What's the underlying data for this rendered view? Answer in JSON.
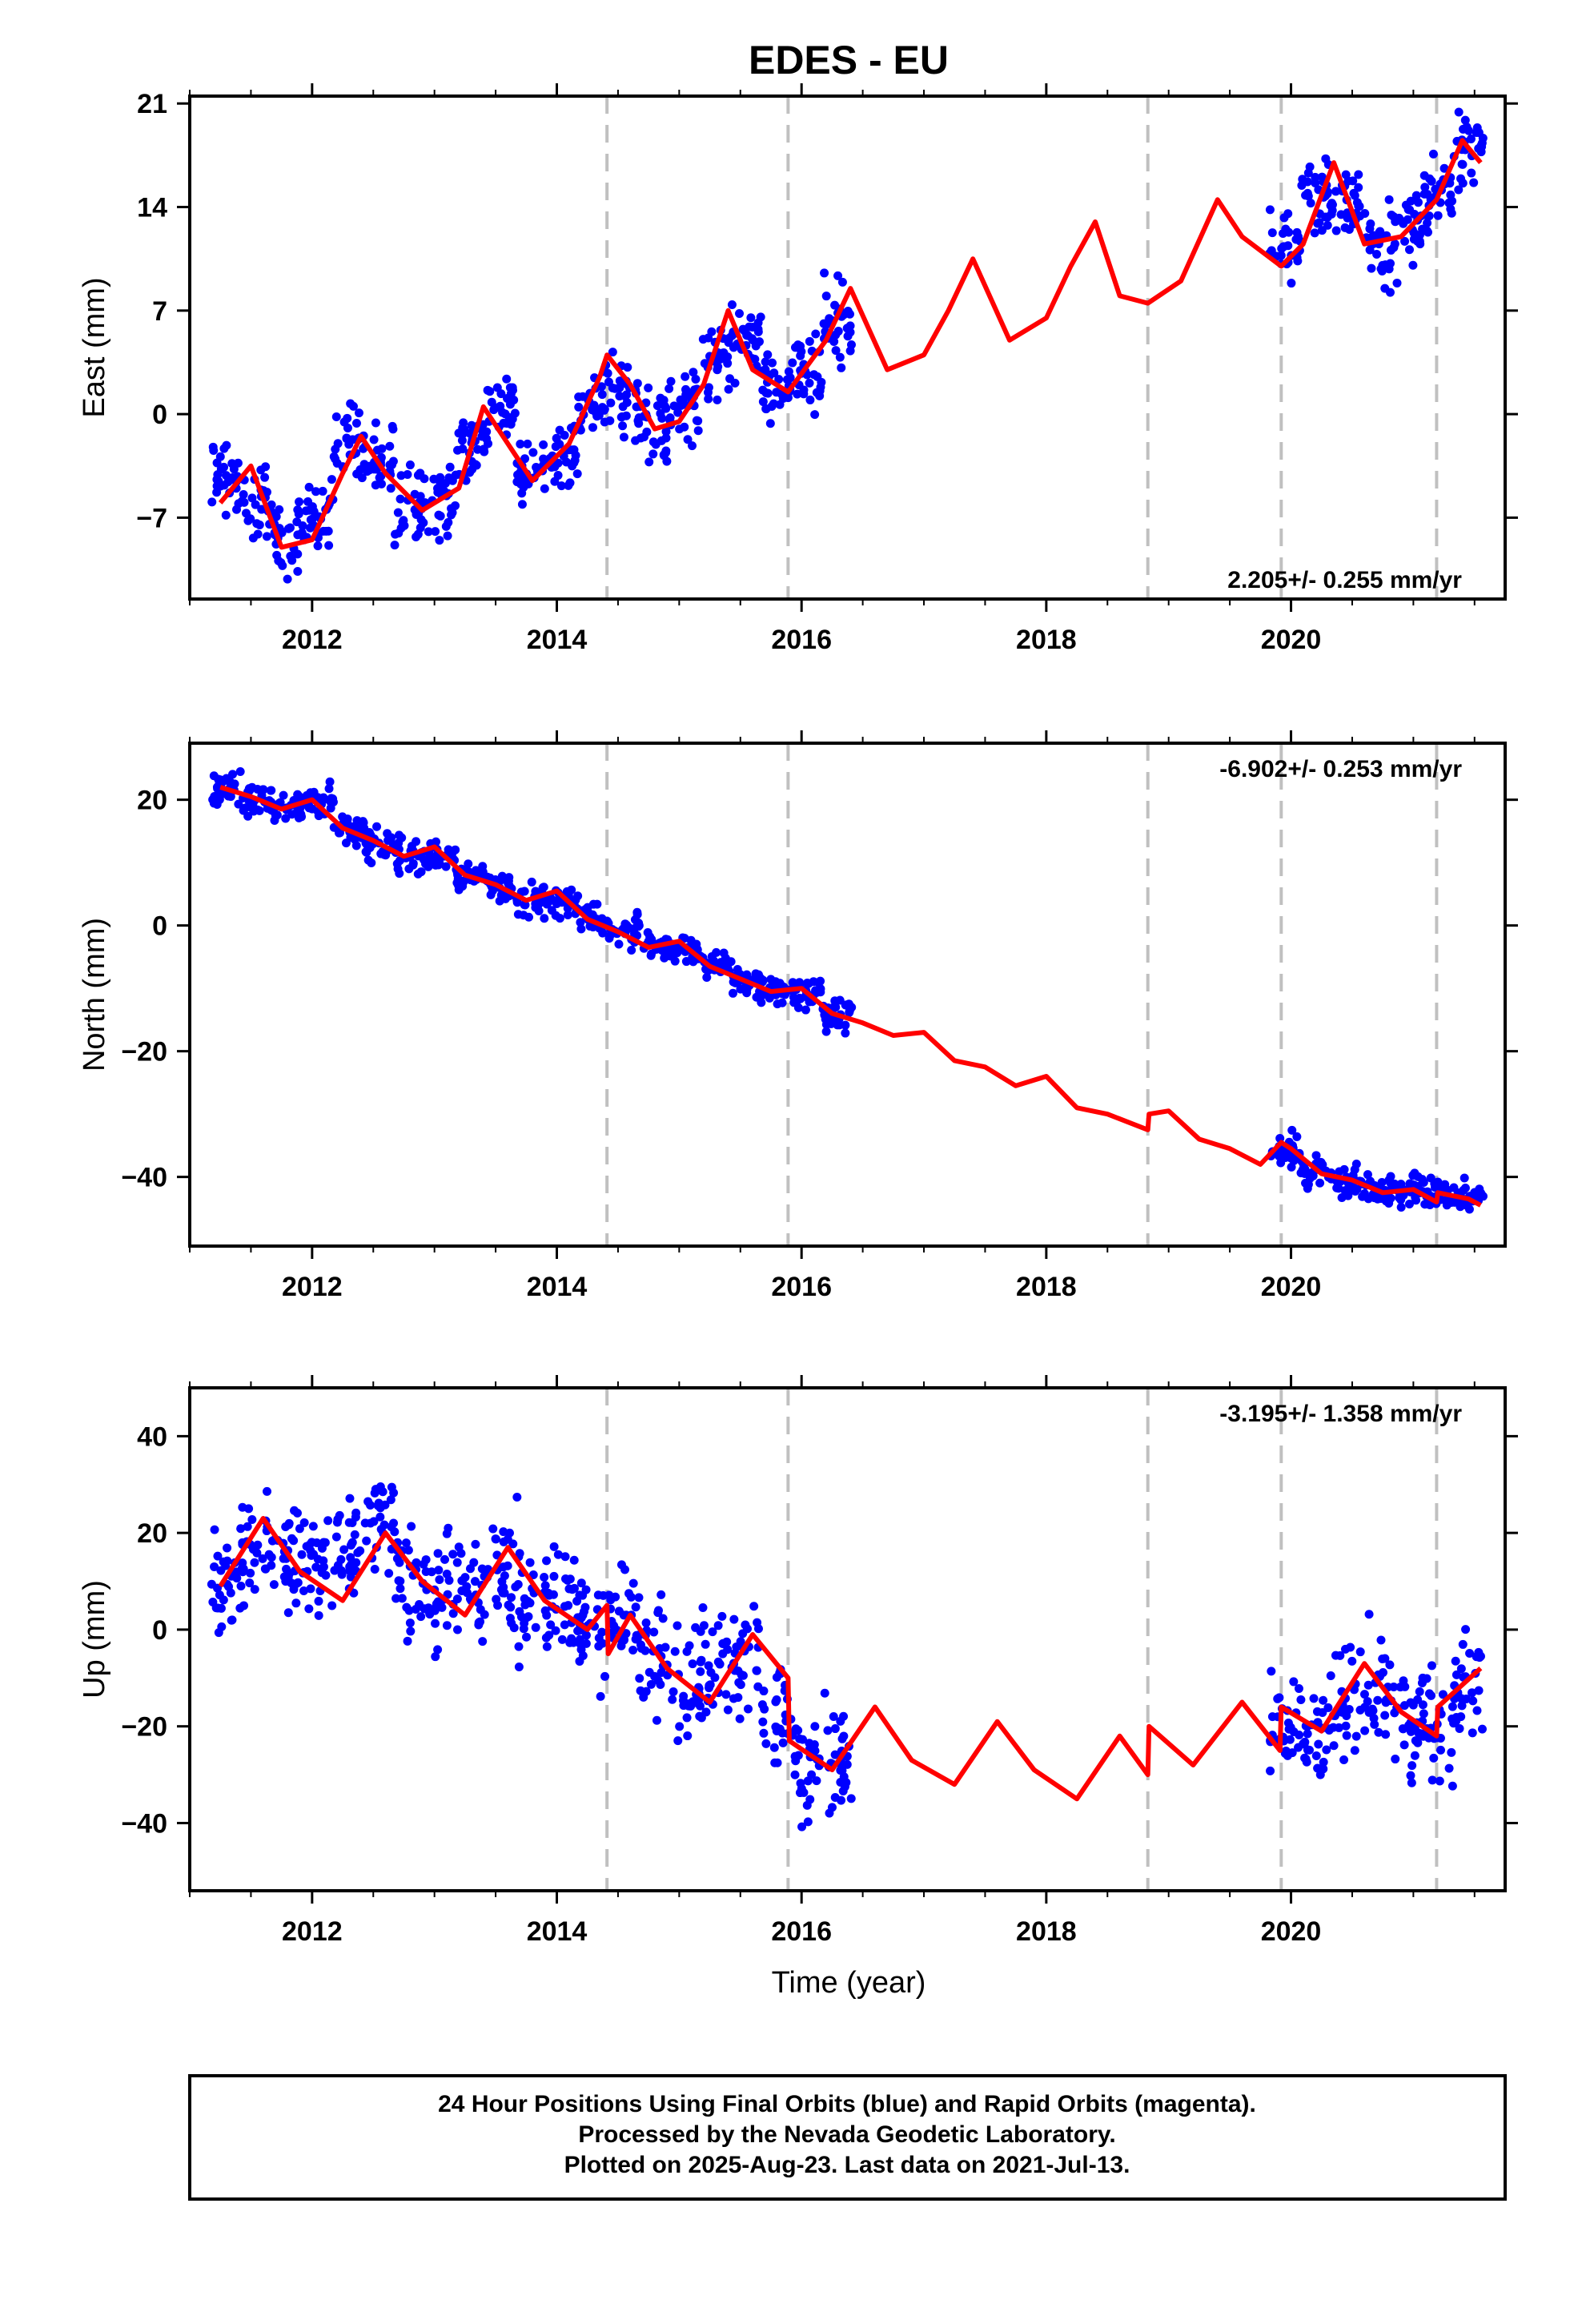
{
  "title": "EDES - EU",
  "colors": {
    "points": "#0000ff",
    "model": "#ff0000",
    "breaks": "#c0c0c0",
    "frame": "#000000"
  },
  "chart_data": [
    {
      "type": "scatter",
      "component": "east",
      "ylabel": "East (mm)",
      "xticks": [
        "2012",
        "2014",
        "2016",
        "2018",
        "2020"
      ],
      "yticks": [
        "−7",
        "0",
        "7",
        "14",
        "21"
      ],
      "xlim": [
        2011.0,
        2021.75
      ],
      "ylim": [
        -12.5,
        21.5
      ],
      "grid": false,
      "rate_label": "2.205+/- 0.255 mm/yr",
      "rate_position": "bottom-right",
      "breaks": [
        2014.41,
        2015.89,
        2018.83,
        2019.92,
        2021.19
      ],
      "model": {
        "x": [
          2011.25,
          2011.5,
          2011.75,
          2012.0,
          2012.25,
          2012.4,
          2012.6,
          2012.9,
          2013.2,
          2013.4,
          2013.6,
          2013.8,
          2014.1,
          2014.35,
          2014.41,
          2014.6,
          2014.8,
          2015.0,
          2015.2,
          2015.4,
          2015.6,
          2015.89,
          2016.2,
          2016.4,
          2016.7,
          2017.0,
          2017.2,
          2017.4,
          2017.7,
          2018.0,
          2018.2,
          2018.4,
          2018.6,
          2018.83,
          2019.1,
          2019.4,
          2019.6,
          2019.92,
          2020.1,
          2020.35,
          2020.6,
          2020.9,
          2021.19,
          2021.4,
          2021.55
        ],
        "y": [
          -6,
          -3.5,
          -9,
          -8.5,
          -4,
          -1.5,
          -4,
          -6.5,
          -5,
          0.5,
          -2,
          -4.5,
          -2,
          2.5,
          4,
          2,
          -1,
          -0.5,
          2,
          7,
          3,
          1.5,
          5,
          8.5,
          3,
          4,
          7,
          10.5,
          5,
          6.5,
          10,
          13,
          8,
          7.5,
          9,
          14.5,
          12,
          10,
          11.5,
          17,
          11.5,
          12,
          14.5,
          18.5,
          17
        ]
      },
      "points_x": [
        2011.3,
        2011.55,
        2011.8,
        2012.05,
        2012.3,
        2012.55,
        2012.8,
        2013.05,
        2013.3,
        2013.55,
        2013.8,
        2014.05,
        2014.3,
        2014.55,
        2014.8,
        2015.05,
        2015.3,
        2015.55,
        2015.8,
        2016.05,
        2016.3,
        2019.95,
        2020.2,
        2020.45,
        2020.7,
        2020.95,
        2021.2,
        2021.45
      ],
      "points_y": [
        -4,
        -6,
        -8.5,
        -7,
        -2,
        -3,
        -6,
        -6,
        -2,
        0,
        -4,
        -3,
        1,
        1,
        -1,
        1,
        4,
        5,
        2,
        3,
        6,
        11,
        15,
        14,
        11,
        12,
        15,
        18
      ]
    },
    {
      "type": "scatter",
      "component": "north",
      "ylabel": "North (mm)",
      "xticks": [
        "2012",
        "2014",
        "2016",
        "2018",
        "2020"
      ],
      "yticks": [
        "−40",
        "−20",
        "0",
        "20"
      ],
      "xlim": [
        2011.0,
        2021.75
      ],
      "ylim": [
        -51,
        29
      ],
      "grid": false,
      "rate_label": "-6.902+/- 0.253 mm/yr",
      "rate_position": "top-right",
      "breaks": [
        2014.41,
        2015.89,
        2018.83,
        2019.92,
        2021.19
      ],
      "model": {
        "x": [
          2011.25,
          2011.5,
          2011.75,
          2012.0,
          2012.25,
          2012.5,
          2012.75,
          2013.0,
          2013.25,
          2013.5,
          2013.75,
          2014.0,
          2014.25,
          2014.5,
          2014.75,
          2015.0,
          2015.25,
          2015.5,
          2015.75,
          2016.0,
          2016.25,
          2016.5,
          2016.75,
          2017.0,
          2017.25,
          2017.5,
          2017.75,
          2018.0,
          2018.25,
          2018.5,
          2018.83,
          2018.84,
          2019.0,
          2019.25,
          2019.5,
          2019.75,
          2019.92,
          2020.0,
          2020.25,
          2020.5,
          2020.75,
          2021.0,
          2021.19,
          2021.2,
          2021.45,
          2021.55
        ],
        "y": [
          22,
          20.5,
          18.5,
          20,
          15.5,
          13.5,
          11,
          12.5,
          8,
          6.5,
          4,
          5.5,
          1,
          -1,
          -3.5,
          -2.5,
          -6.5,
          -8.5,
          -10.5,
          -10,
          -14,
          -15.5,
          -17.5,
          -17,
          -21.5,
          -22.5,
          -25.5,
          -24,
          -29,
          -30,
          -32.5,
          -30,
          -29.5,
          -34,
          -35.5,
          -38,
          -34.5,
          -35.5,
          -39.5,
          -40.5,
          -42.5,
          -42,
          -44,
          -42.5,
          -43.5,
          -44.5
        ]
      },
      "points_x": [
        2011.3,
        2011.55,
        2011.8,
        2012.05,
        2012.3,
        2012.55,
        2012.8,
        2013.05,
        2013.3,
        2013.55,
        2013.8,
        2014.05,
        2014.3,
        2014.55,
        2014.8,
        2015.05,
        2015.3,
        2015.55,
        2015.8,
        2016.05,
        2016.3,
        2019.95,
        2020.2,
        2020.45,
        2020.7,
        2020.95,
        2021.2,
        2021.45
      ],
      "points_y": [
        22,
        20,
        19,
        20,
        15,
        13,
        11,
        11,
        8,
        6,
        4,
        4,
        1,
        -1,
        -3,
        -4,
        -6,
        -9,
        -10,
        -11,
        -14,
        -36,
        -39,
        -41,
        -42,
        -42,
        -43,
        -43
      ]
    },
    {
      "type": "scatter",
      "component": "up",
      "ylabel": "Up (mm)",
      "xlabel": "Time (year)",
      "xticks": [
        "2012",
        "2014",
        "2016",
        "2018",
        "2020"
      ],
      "yticks": [
        "−40",
        "−20",
        "0",
        "20",
        "40"
      ],
      "xlim": [
        2011.0,
        2021.75
      ],
      "ylim": [
        -54,
        50
      ],
      "grid": false,
      "rate_label": "-3.195+/- 1.358 mm/yr",
      "rate_position": "top-right",
      "breaks": [
        2014.41,
        2015.89,
        2018.83,
        2019.92,
        2021.19
      ],
      "model": {
        "x": [
          2011.25,
          2011.6,
          2011.9,
          2012.25,
          2012.6,
          2012.9,
          2013.25,
          2013.6,
          2013.9,
          2014.25,
          2014.41,
          2014.42,
          2014.6,
          2014.9,
          2015.25,
          2015.6,
          2015.89,
          2015.9,
          2016.25,
          2016.6,
          2016.9,
          2017.25,
          2017.6,
          2017.9,
          2018.25,
          2018.6,
          2018.83,
          2018.84,
          2019.2,
          2019.6,
          2019.91,
          2019.92,
          2020.25,
          2020.6,
          2020.9,
          2021.19,
          2021.2,
          2021.55
        ],
        "y": [
          9,
          23,
          12,
          6,
          20,
          10,
          3,
          17,
          6,
          0,
          5,
          -5,
          3,
          -8,
          -15,
          -1,
          -10,
          -23,
          -29,
          -16,
          -27,
          -32,
          -19,
          -29,
          -35,
          -22,
          -30,
          -20,
          -28,
          -15,
          -25,
          -16,
          -21,
          -7,
          -17,
          -22,
          -16,
          -8
        ]
      },
      "points_x": [
        2011.3,
        2011.55,
        2011.8,
        2012.05,
        2012.3,
        2012.55,
        2012.8,
        2013.05,
        2013.3,
        2013.55,
        2013.8,
        2014.05,
        2014.3,
        2014.55,
        2014.8,
        2015.05,
        2015.3,
        2015.55,
        2015.8,
        2016.05,
        2016.3,
        2019.95,
        2020.2,
        2020.45,
        2020.7,
        2020.95,
        2021.2,
        2021.45
      ],
      "points_y": [
        10,
        18,
        15,
        12,
        16,
        22,
        10,
        8,
        6,
        12,
        7,
        4,
        0,
        2,
        -5,
        -12,
        -8,
        -5,
        -18,
        -28,
        -26,
        -20,
        -22,
        -15,
        -12,
        -18,
        -20,
        -12
      ]
    }
  ],
  "footer": {
    "line1": "24 Hour Positions Using Final Orbits (blue) and Rapid Orbits (magenta).",
    "line2": "Processed by the Nevada Geodetic Laboratory.",
    "line3": "Plotted on 2025-Aug-23. Last data on 2021-Jul-13."
  }
}
